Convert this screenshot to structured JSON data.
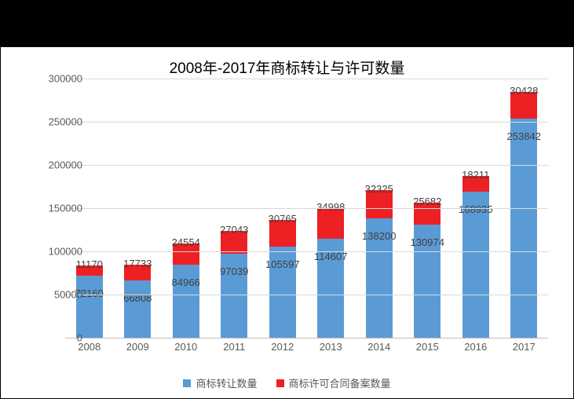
{
  "chart": {
    "type": "stacked-bar",
    "title": "2008年-2017年商标转让与许可数量",
    "title_fontsize": 19,
    "title_color": "#000000",
    "background_color": "#ffffff",
    "outer_background": "#000000",
    "grid_color": "#d9d9d9",
    "axis_color": "#bfbfbf",
    "tick_fontsize": 13,
    "tick_color": "#595959",
    "data_label_fontsize": 13,
    "data_label_color": "#404040",
    "bar_width_ratio": 0.55,
    "ylim": [
      0,
      300000
    ],
    "ytick_step": 50000,
    "yticks": [
      "0",
      "50000",
      "100000",
      "150000",
      "200000",
      "250000",
      "300000"
    ],
    "categories": [
      "2008",
      "2009",
      "2010",
      "2011",
      "2012",
      "2013",
      "2014",
      "2015",
      "2016",
      "2017"
    ],
    "series": [
      {
        "name": "商标转让数量",
        "color": "#5b9bd5",
        "values": [
          72160,
          66808,
          84966,
          97039,
          105597,
          114607,
          138200,
          130974,
          168935,
          253842
        ]
      },
      {
        "name": "商标许可合同备案数量",
        "color": "#ed2024",
        "values": [
          11170,
          17733,
          24554,
          27043,
          30765,
          34998,
          32325,
          25682,
          18211,
          30428
        ]
      }
    ],
    "legend_fontsize": 13,
    "legend_color": "#595959"
  }
}
